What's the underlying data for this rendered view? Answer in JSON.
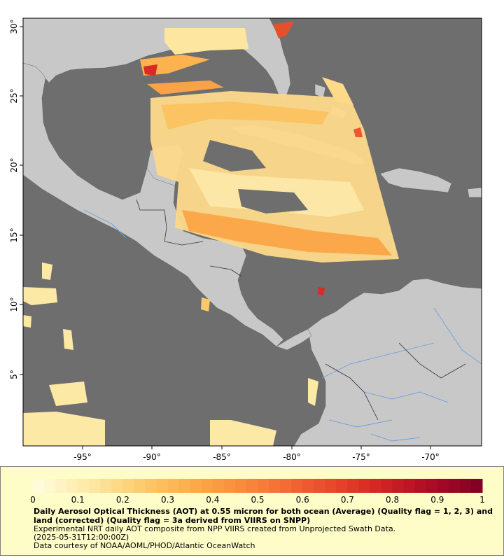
{
  "map": {
    "lat_ticks": [
      "30°",
      "25°",
      "20°",
      "15°",
      "10°",
      "5°"
    ],
    "lon_ticks": [
      "-95°",
      "-90°",
      "-85°",
      "-80°",
      "-75°",
      "-70°"
    ],
    "colors": {
      "ocean": "#6e6e6e",
      "land": "#c8c8c8",
      "rivers": "#6fa0d8",
      "borders": "#4a4a4a"
    }
  },
  "legend": {
    "tick_labels": [
      "0",
      "0.1",
      "0.2",
      "0.3",
      "0.4",
      "0.5",
      "0.6",
      "0.7",
      "0.8",
      "0.9",
      "1"
    ],
    "range": [
      0,
      1
    ],
    "title": "Daily Aerosol Optical Thickness (AOT) at 0.55 micron for both ocean (Average) (Quality flag = 1, 2, 3) and land (corrected) (Quality flag = 3a derived from VIIRS on SNPP)",
    "line1": "Experimental NRT daily AOT composite from NPP VIIRS created from Unprojected Swath Data.",
    "line2": "(2025-05-31T12:00:00Z)",
    "line3": "Data courtesy of NOAA/AOML/PHOD/Atlantic OceanWatch",
    "colormap": [
      "#fffde0",
      "#fde9a6",
      "#fdc96a",
      "#fca545",
      "#f8803a",
      "#ee5530",
      "#d92a24",
      "#b10c26",
      "#7e0024"
    ]
  }
}
